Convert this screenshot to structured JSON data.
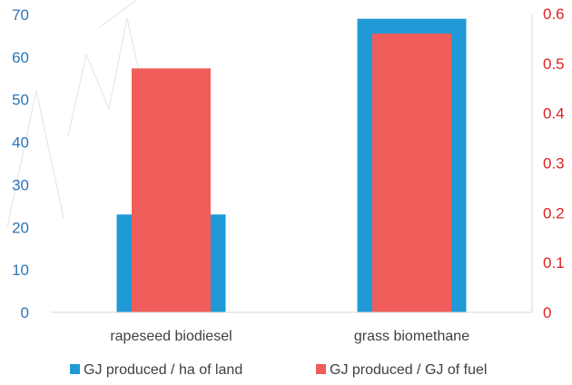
{
  "chart_data": {
    "type": "bar",
    "categories": [
      "rapeseed biodiesel",
      "grass biomethane"
    ],
    "series": [
      {
        "name": "GJ produced / ha of land",
        "axis": "left",
        "color": "#1f9ad6",
        "values": [
          23,
          69
        ]
      },
      {
        "name": "GJ produced / GJ of fuel",
        "axis": "right",
        "color": "#ef5e5a",
        "values": [
          0.49,
          0.56
        ]
      }
    ],
    "y_left": {
      "ylim": [
        0,
        70
      ],
      "ticks": [
        "0",
        "10",
        "20",
        "30",
        "40",
        "50",
        "60",
        "70"
      ],
      "color": "#2e75b6"
    },
    "y_right": {
      "ylim": [
        0,
        0.65
      ],
      "ticks": [
        "0",
        "0.1",
        "0.2",
        "0.3",
        "0.4",
        "0.5",
        "0.6"
      ],
      "color": "#e02020"
    },
    "legend_position": "bottom",
    "grid": false
  }
}
